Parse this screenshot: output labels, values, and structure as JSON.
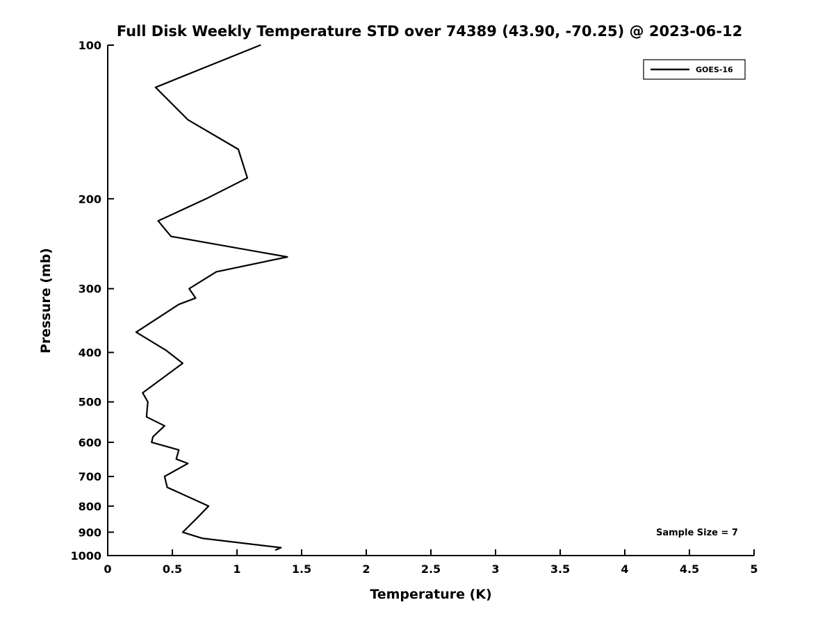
{
  "title": "Full Disk Weekly Temperature STD over 74389 (43.90, -70.25) @ 2023-06-12",
  "annotation": "Sample Size = 7",
  "legend": {
    "label": "GOES-16",
    "line_color": "#000000"
  },
  "chart_data": {
    "type": "line",
    "title": "Full Disk Weekly Temperature STD over 74389 (43.90, -70.25) @ 2023-06-12",
    "xlabel": "Temperature (K)",
    "ylabel": "Pressure (mb)",
    "xlim": [
      0,
      5
    ],
    "x_ticks": [
      0,
      0.5,
      1,
      1.5,
      2,
      2.5,
      3,
      3.5,
      4,
      4.5,
      5
    ],
    "x_tick_labels": [
      "0",
      "0.5",
      "1",
      "1.5",
      "2",
      "2.5",
      "3",
      "3.5",
      "4",
      "4.5",
      "5"
    ],
    "y_scale": "log",
    "y_inverted": true,
    "ylim": [
      100,
      1000
    ],
    "y_ticks": [
      100,
      200,
      300,
      400,
      500,
      600,
      700,
      800,
      900,
      1000
    ],
    "y_tick_labels": [
      "100",
      "200",
      "300",
      "400",
      "500",
      "600",
      "700",
      "800",
      "900",
      "1000"
    ],
    "grid": false,
    "legend_position": "top-right",
    "line_width": 2.2,
    "series": [
      {
        "name": "GOES-16",
        "color": "#000000",
        "pressure_mb": [
          100,
          121,
          140,
          160,
          182,
          200,
          221,
          237,
          260,
          278,
          300,
          313,
          322,
          365,
          396,
          420,
          480,
          500,
          535,
          557,
          585,
          600,
          621,
          647,
          660,
          700,
          735,
          800,
          845,
          900,
          925,
          965,
          975
        ],
        "temperature_std_k": [
          1.18,
          0.37,
          0.62,
          1.01,
          1.08,
          0.76,
          0.39,
          0.49,
          1.39,
          0.84,
          0.63,
          0.68,
          0.55,
          0.22,
          0.45,
          0.58,
          0.27,
          0.31,
          0.3,
          0.44,
          0.35,
          0.34,
          0.55,
          0.53,
          0.62,
          0.44,
          0.46,
          0.78,
          0.69,
          0.58,
          0.73,
          1.34,
          1.3
        ]
      }
    ]
  }
}
